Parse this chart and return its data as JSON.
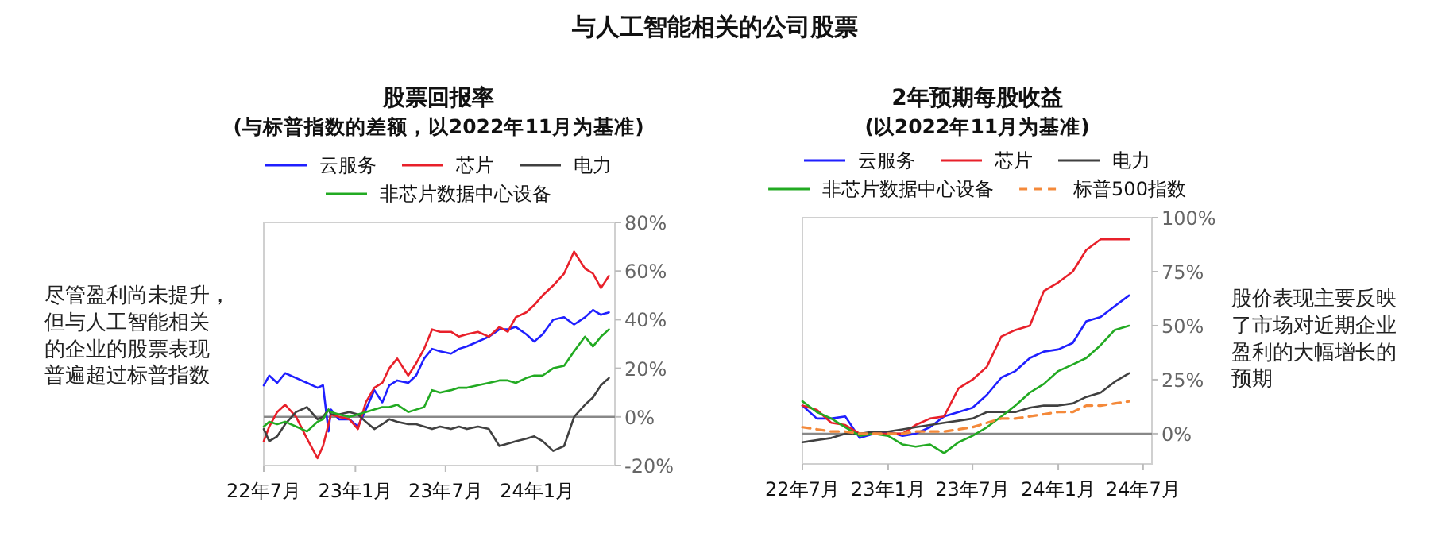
{
  "chart_data": [
    {
      "type": "other",
      "title": "与人工智能相关的公司股票",
      "annotations": [
        "尽管盈利尚未提升，但与人工智能相关的企业的股票表现普遍超过标普指数"
      ]
    },
    {
      "type": "line",
      "title": "股票回报率",
      "subtitle": "(与标普指数的差额，以2022年11月为基准)",
      "legend": "top",
      "x": [
        "2022-07-01",
        "2022-07-12",
        "2022-07-28",
        "2022-08-13",
        "2022-09-04",
        "2022-09-26",
        "2022-10-17",
        "2022-10-28",
        "2022-11-08",
        "2022-11-13",
        "2022-11-29",
        "2022-12-20",
        "2023-01-06",
        "2023-01-22",
        "2023-02-08",
        "2023-02-24",
        "2023-03-10",
        "2023-03-26",
        "2023-04-17",
        "2023-05-03",
        "2023-05-19",
        "2023-06-04",
        "2023-06-20",
        "2023-07-12",
        "2023-07-28",
        "2023-08-13",
        "2023-09-04",
        "2023-09-26",
        "2023-10-17",
        "2023-11-03",
        "2023-11-19",
        "2023-12-10",
        "2023-12-26",
        "2024-01-12",
        "2024-02-02",
        "2024-02-24",
        "2024-03-15",
        "2024-04-06",
        "2024-04-22",
        "2024-05-08",
        "2024-05-24"
      ],
      "xlim": [
        "2022-07-01",
        "2024-06-05"
      ],
      "xticks": [
        {
          "value": "2022-07",
          "label": "22年7月"
        },
        {
          "value": "2023-01",
          "label": "23年1月"
        },
        {
          "value": "2023-07",
          "label": "23年7月"
        },
        {
          "value": "2024-01",
          "label": "24年1月"
        }
      ],
      "ylim": [
        -20,
        80
      ],
      "yticks": [
        {
          "value": -20,
          "label": "-20%"
        },
        {
          "value": 0,
          "label": "0%"
        },
        {
          "value": 20,
          "label": "20%"
        },
        {
          "value": 40,
          "label": "40%"
        },
        {
          "value": 60,
          "label": "60%"
        },
        {
          "value": 80,
          "label": "80%"
        }
      ],
      "ref_lines": [
        {
          "axis": "y",
          "value": 0,
          "color": "#888888"
        }
      ],
      "series": [
        {
          "name": "云服务",
          "color": "#1f1fff",
          "values": [
            13,
            17,
            14,
            18,
            16,
            14,
            12,
            13,
            -6,
            3,
            -1,
            -1,
            -4,
            3,
            11,
            6,
            13,
            15,
            14,
            17,
            24,
            28,
            27,
            26,
            28,
            29,
            31,
            33,
            36,
            36,
            37,
            34,
            31,
            34,
            40,
            41,
            38,
            41,
            44,
            42,
            43
          ]
        },
        {
          "name": "芯片",
          "color": "#e8202a",
          "values": [
            -10,
            -4,
            2,
            5,
            0,
            -9,
            -17,
            -12,
            -3,
            1,
            0,
            -1,
            -5,
            6,
            12,
            14,
            20,
            24,
            17,
            22,
            28,
            36,
            35,
            35,
            33,
            34,
            35,
            33,
            37,
            35,
            41,
            43,
            46,
            50,
            54,
            59,
            68,
            61,
            59,
            53,
            58
          ]
        },
        {
          "name": "电力",
          "color": "#404040",
          "values": [
            -5,
            -10,
            -8,
            -3,
            2,
            4,
            -1,
            0,
            3,
            1,
            1,
            2,
            1,
            -2,
            -5,
            -3,
            -1,
            -2,
            -3,
            -3,
            -4,
            -5,
            -4,
            -5,
            -4,
            -5,
            -4,
            -5,
            -12,
            -11,
            -10,
            -9,
            -8,
            -10,
            -14,
            -12,
            0,
            5,
            8,
            13,
            16
          ]
        },
        {
          "name": "非芯片数据中心设备",
          "color": "#22aa22",
          "values": [
            -4,
            -2,
            -3,
            -2,
            -4,
            -6,
            -2,
            -1,
            3,
            2,
            1,
            0,
            1,
            2,
            3,
            4,
            4,
            5,
            2,
            3,
            4,
            11,
            10,
            11,
            12,
            12,
            13,
            14,
            15,
            15,
            14,
            16,
            17,
            17,
            20,
            21,
            27,
            33,
            29,
            33,
            36
          ]
        }
      ]
    },
    {
      "type": "line",
      "title": "2年预期每股收益",
      "subtitle": "(以2022年11月为基准)",
      "legend": "top",
      "annotations": [
        "股价表现主要反映了市场对近期企业盈利的大幅增长的预期"
      ],
      "x": [
        "2022-07",
        "2022-08",
        "2022-09",
        "2022-10",
        "2022-11",
        "2022-12",
        "2023-01",
        "2023-02",
        "2023-03",
        "2023-04",
        "2023-05",
        "2023-06",
        "2023-07",
        "2023-08",
        "2023-09",
        "2023-10",
        "2023-11",
        "2023-12",
        "2024-01",
        "2024-02",
        "2024-03",
        "2024-04",
        "2024-05",
        "2024-06"
      ],
      "xlim": [
        "2022-07-01",
        "2024-07-20"
      ],
      "xticks": [
        {
          "value": "2022-07",
          "label": "22年7月"
        },
        {
          "value": "2023-01",
          "label": "23年1月"
        },
        {
          "value": "2023-07",
          "label": "23年7月"
        },
        {
          "value": "2024-01",
          "label": "24年1月"
        },
        {
          "value": "2024-07",
          "label": "24年7月"
        }
      ],
      "ylim": [
        -14,
        100
      ],
      "yticks": [
        {
          "value": 0,
          "label": "0%"
        },
        {
          "value": 25,
          "label": "25%"
        },
        {
          "value": 50,
          "label": "50%"
        },
        {
          "value": 75,
          "label": "75%"
        },
        {
          "value": 100,
          "label": "100%"
        }
      ],
      "ref_lines": [
        {
          "axis": "y",
          "value": 0,
          "color": "#888888"
        }
      ],
      "series": [
        {
          "name": "云服务",
          "color": "#1f1fff",
          "values": [
            13,
            7,
            7,
            8,
            -2,
            0,
            1,
            -1,
            0,
            3,
            8,
            10,
            12,
            18,
            26,
            29,
            35,
            38,
            39,
            42,
            52,
            54,
            59,
            64
          ]
        },
        {
          "name": "芯片",
          "color": "#e8202a",
          "values": [
            13,
            11,
            5,
            4,
            0,
            0,
            0,
            0,
            4,
            7,
            8,
            21,
            25,
            31,
            45,
            48,
            50,
            66,
            70,
            75,
            85,
            90,
            90,
            90
          ]
        },
        {
          "name": "电力",
          "color": "#404040",
          "values": [
            -4,
            -3,
            -2,
            0,
            0,
            1,
            1,
            2,
            3,
            4,
            5,
            6,
            7,
            10,
            10,
            10,
            12,
            13,
            13,
            14,
            17,
            19,
            24,
            28
          ]
        },
        {
          "name": "非芯片数据中心设备",
          "color": "#22aa22",
          "values": [
            15,
            10,
            7,
            3,
            -1,
            0,
            -1,
            -5,
            -6,
            -5,
            -9,
            -4,
            -1,
            3,
            8,
            13,
            19,
            23,
            29,
            32,
            35,
            41,
            48,
            50
          ]
        },
        {
          "name": "标普500指数",
          "color": "#f4893a",
          "line_style": "dashed",
          "values": [
            3,
            2,
            1,
            1,
            0,
            0,
            0,
            0,
            1,
            1,
            1,
            2,
            3,
            5,
            7,
            7,
            8,
            9,
            10,
            10,
            13,
            13,
            14,
            15
          ]
        }
      ]
    }
  ]
}
